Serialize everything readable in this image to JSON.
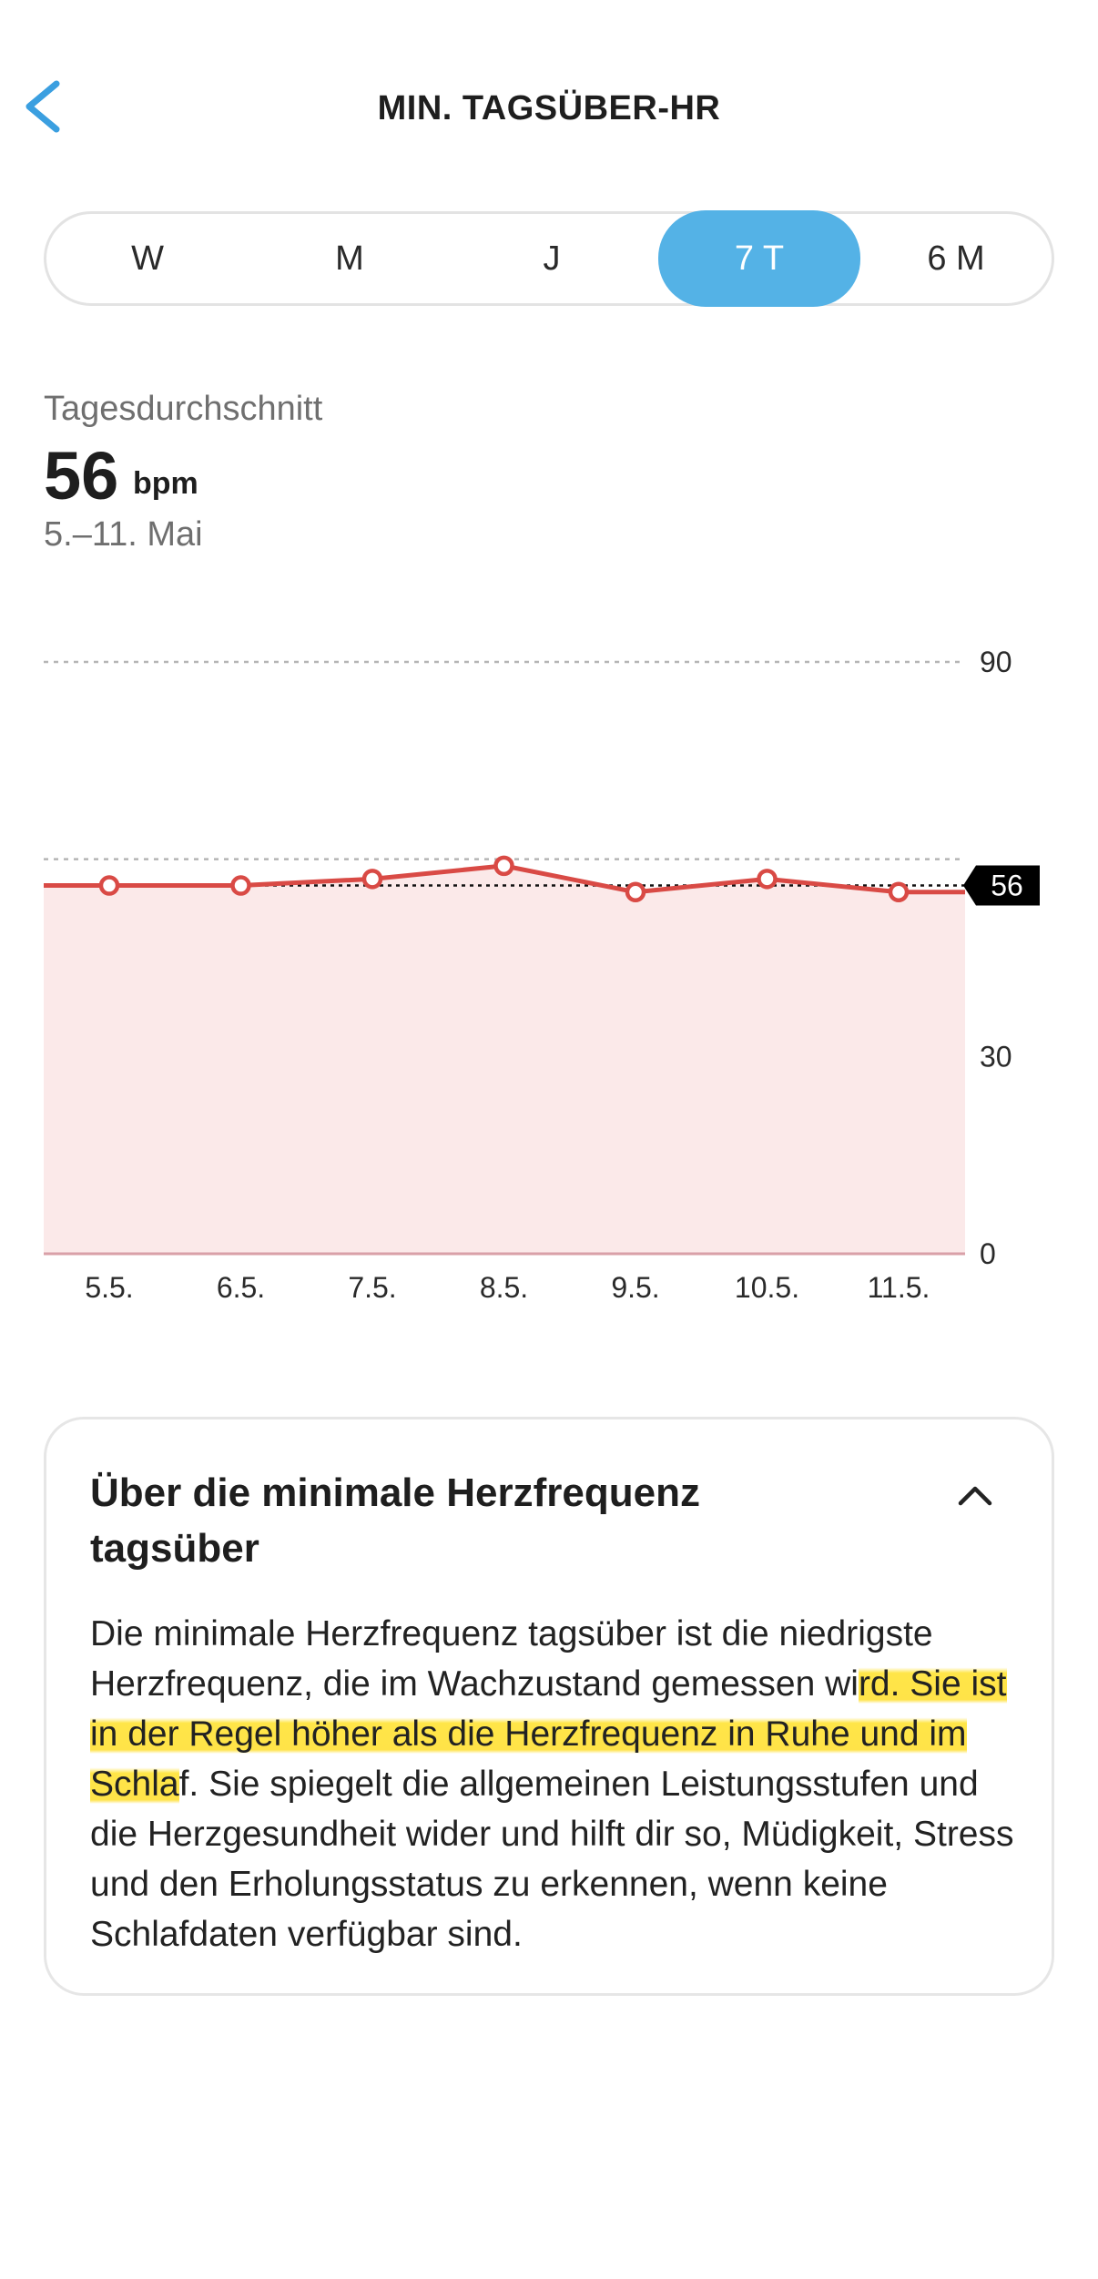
{
  "header": {
    "title": "MIN. TAGSÜBER-HR",
    "back_icon": "chevron-left-icon"
  },
  "tabs": [
    {
      "label": "W",
      "active": false
    },
    {
      "label": "M",
      "active": false
    },
    {
      "label": "J",
      "active": false
    },
    {
      "label": "7 T",
      "active": true
    },
    {
      "label": "6 M",
      "active": false
    }
  ],
  "summary": {
    "label": "Tagesdurchschnitt",
    "value": "56",
    "unit": "bpm",
    "range": "5.–11. Mai"
  },
  "chart_data": {
    "type": "line",
    "categories": [
      "5.5.",
      "6.5.",
      "7.5.",
      "8.5.",
      "9.5.",
      "10.5.",
      "11.5."
    ],
    "series": [
      {
        "values": [
          56,
          56,
          57,
          59,
          55,
          57,
          55
        ]
      }
    ],
    "average": 56,
    "average_label": "56",
    "y_ticks": [
      "0",
      "30",
      "90"
    ],
    "ylim": [
      0,
      90
    ],
    "colors": {
      "line": "#d94a45",
      "fill": "#fbe9e9",
      "grid": "#b5b5b5",
      "avg": "#111111"
    }
  },
  "info_card": {
    "title": "Über die minimale Herzfrequenz tagsüber",
    "collapse_icon": "chevron-up-icon",
    "body_before": "Die minimale Herzfrequenz tagsüber ist die niedrigste Herzfrequenz, die im Wachzustand gemessen wi",
    "body_highlight": "rd. Sie ist in der Regel höher als die Herzfrequenz in Ruhe und im Schla",
    "body_after": "f. Sie spiegelt die allgemeinen Leistungsstufen und die Herzgesundheit wider und hilft dir so, Müdigkeit, Stress und den Erholungsstatus zu erkennen, wenn keine Schlafdaten verfügbar sind."
  }
}
